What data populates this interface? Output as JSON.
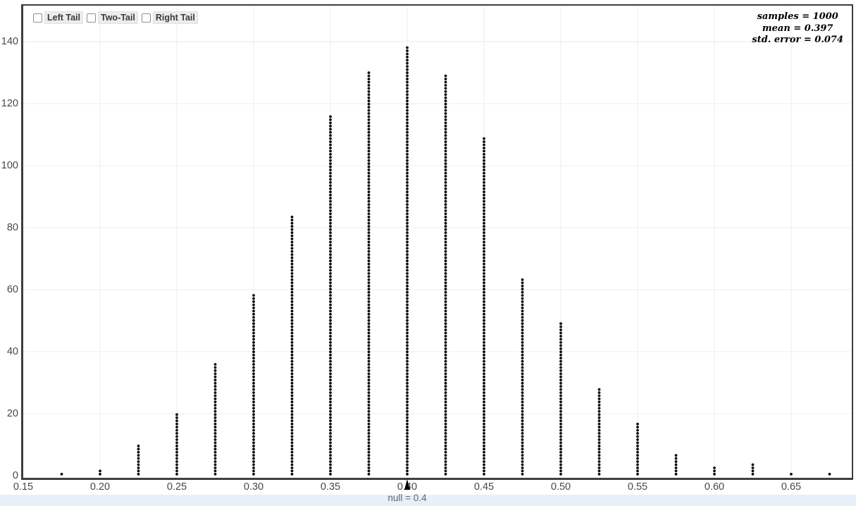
{
  "controls": {
    "checkboxes": [
      {
        "id": "left-tail",
        "label": "Left Tail",
        "checked": false
      },
      {
        "id": "two-tail",
        "label": "Two-Tail",
        "checked": false
      },
      {
        "id": "right-tail",
        "label": "Right Tail",
        "checked": false
      }
    ]
  },
  "stats_panel": {
    "lines": [
      "samples = 1000",
      "mean = 0.397",
      "std. error = 0.074"
    ],
    "samples": 1000,
    "mean": 0.397,
    "std_error": 0.074
  },
  "null_marker": {
    "value": 0.4,
    "label": "null = 0.4"
  },
  "chart_data": {
    "type": "scatter",
    "variant": "stacked-dot-plot-sampling-distribution",
    "title": "",
    "xlabel": "null = 0.4",
    "ylabel": "",
    "x": [
      0.175,
      0.2,
      0.225,
      0.25,
      0.275,
      0.3,
      0.325,
      0.35,
      0.375,
      0.4,
      0.425,
      0.45,
      0.475,
      0.5,
      0.525,
      0.55,
      0.575,
      0.6,
      0.625,
      0.65,
      0.675
    ],
    "counts": [
      1,
      2,
      10,
      20,
      36,
      58,
      83,
      115,
      129,
      137,
      128,
      108,
      63,
      49,
      28,
      17,
      7,
      3,
      4,
      1,
      1
    ],
    "total_samples": 1000,
    "x_axis": {
      "ticks": [
        0.15,
        0.2,
        0.25,
        0.3,
        0.35,
        0.4,
        0.45,
        0.5,
        0.55,
        0.6,
        0.65
      ],
      "labels": [
        "0.15",
        "0.20",
        "0.25",
        "0.30",
        "0.35",
        "0.40",
        "0.45",
        "0.50",
        "0.55",
        "0.60",
        "0.65"
      ]
    },
    "y_axis": {
      "ticks": [
        0,
        20,
        40,
        60,
        80,
        100,
        120,
        140
      ]
    },
    "xlim": [
      0.15,
      0.6894
    ],
    "ylim": [
      0,
      152
    ],
    "grid": true,
    "legend": null,
    "annotations": {
      "samples": "samples = 1000",
      "mean": "mean = 0.397",
      "std_error": "std. error = 0.074",
      "null": "null = 0.4"
    }
  },
  "colors": {
    "dot": "#0a0a0a",
    "grid": "#ececec",
    "axis_border": "#3e3e3e",
    "tick_label": "#474747",
    "chip_bg": "#ececec",
    "chip_text": "#3a3a3a",
    "null_label": "#5e6a74",
    "bottom_strip": "#e7eff8"
  }
}
